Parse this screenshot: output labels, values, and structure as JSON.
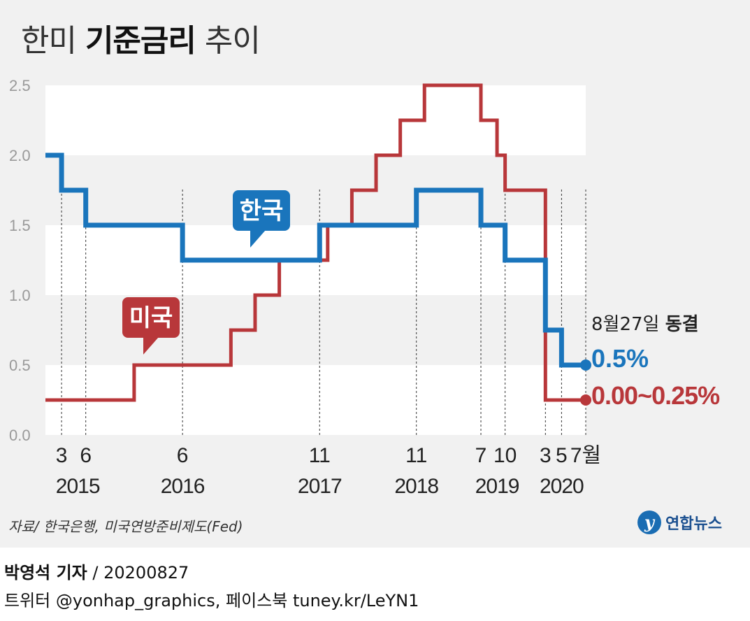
{
  "title": {
    "normal1": "한미 ",
    "bold": "기준금리",
    "normal2": " 추이"
  },
  "source": "자료/ 한국은행, 미국연방준비제도(Fed)",
  "logo": {
    "mark": "y",
    "text": "연합뉴스"
  },
  "byline": {
    "reporter": "박영석 기자",
    "sep": " /  ",
    "date": "20200827"
  },
  "social": "트위터 @yonhap_graphics, 페이스북 tuney.kr/LeYN1",
  "annotation": {
    "date": "8월27일 ",
    "status": "동결",
    "korea_rate": "0.5%",
    "us_rate": "0.00~0.25%"
  },
  "colors": {
    "korea": "#1a75bc",
    "us": "#b8373a",
    "band": "#ffffff",
    "background": "#f1f1f1"
  },
  "chart_data": {
    "type": "line",
    "step": true,
    "title": "한미 기준금리 추이",
    "ylim": [
      0,
      2.5
    ],
    "yticks": [
      "0.0",
      "0.5",
      "1.0",
      "1.5",
      "2.0",
      "2.5"
    ],
    "xlim": [
      "2015-01",
      "2020-08"
    ],
    "x_ticks": [
      {
        "date": "2015-03",
        "month": "3",
        "year": ""
      },
      {
        "date": "2015-06",
        "month": "6",
        "year": ""
      },
      {
        "date": "2016-06",
        "month": "6",
        "year": ""
      },
      {
        "date": "2017-11",
        "month": "11",
        "year": ""
      },
      {
        "date": "2018-11",
        "month": "11",
        "year": ""
      },
      {
        "date": "2019-07",
        "month": "7",
        "year": ""
      },
      {
        "date": "2019-10",
        "month": "10",
        "year": ""
      },
      {
        "date": "2020-03",
        "month": "3",
        "year": ""
      },
      {
        "date": "2020-05",
        "month": "5",
        "year": ""
      },
      {
        "date": "2020-08",
        "month": "7월",
        "year": ""
      }
    ],
    "years": [
      {
        "label": "2015",
        "date": "2015-05"
      },
      {
        "label": "2016",
        "date": "2016-06"
      },
      {
        "label": "2017",
        "date": "2017-11"
      },
      {
        "label": "2018",
        "date": "2018-11"
      },
      {
        "label": "2019",
        "date": "2019-09"
      },
      {
        "label": "2020",
        "date": "2020-05"
      }
    ],
    "series": [
      {
        "name": "한국",
        "steps": [
          {
            "x": "2015-01",
            "y": 2.0
          },
          {
            "x": "2015-03",
            "y": 1.75
          },
          {
            "x": "2015-06",
            "y": 1.5
          },
          {
            "x": "2016-06",
            "y": 1.25
          },
          {
            "x": "2017-11",
            "y": 1.5
          },
          {
            "x": "2018-11",
            "y": 1.75
          },
          {
            "x": "2019-07",
            "y": 1.5
          },
          {
            "x": "2019-10",
            "y": 1.25
          },
          {
            "x": "2020-03",
            "y": 0.75
          },
          {
            "x": "2020-05",
            "y": 0.5
          },
          {
            "x": "2020-08",
            "y": 0.5
          }
        ]
      },
      {
        "name": "미국",
        "steps": [
          {
            "x": "2015-01",
            "y": 0.25
          },
          {
            "x": "2015-12",
            "y": 0.5
          },
          {
            "x": "2016-12",
            "y": 0.75
          },
          {
            "x": "2017-03",
            "y": 1.0
          },
          {
            "x": "2017-06",
            "y": 1.25
          },
          {
            "x": "2017-12",
            "y": 1.5
          },
          {
            "x": "2018-03",
            "y": 1.75
          },
          {
            "x": "2018-06",
            "y": 2.0
          },
          {
            "x": "2018-09",
            "y": 2.25
          },
          {
            "x": "2018-12",
            "y": 2.5
          },
          {
            "x": "2019-07",
            "y": 2.25
          },
          {
            "x": "2019-09",
            "y": 2.0
          },
          {
            "x": "2019-10",
            "y": 1.75
          },
          {
            "x": "2020-03",
            "y": 1.25
          },
          {
            "x": "2020-03",
            "y": 0.25
          },
          {
            "x": "2020-08",
            "y": 0.25
          }
        ]
      }
    ],
    "labels": {
      "korea": "한국",
      "us": "미국"
    }
  }
}
